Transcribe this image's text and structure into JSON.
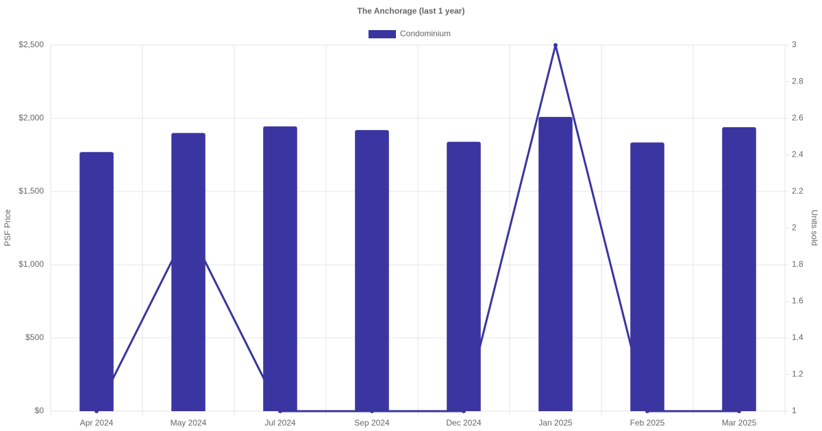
{
  "chart_data": {
    "type": "bar",
    "title": "The Anchorage (last 1 year)",
    "categories": [
      "Apr 2024",
      "May 2024",
      "Jul 2024",
      "Sep 2024",
      "Dec 2024",
      "Jan 2025",
      "Feb 2025",
      "Mar 2025"
    ],
    "series": [
      {
        "name": "Condominium",
        "type": "bar",
        "color": "#3a35a0",
        "values": [
          1770,
          1900,
          1945,
          1920,
          1840,
          2010,
          1835,
          1940
        ]
      },
      {
        "type": "line",
        "axis": "y2",
        "color": "#3a35a0",
        "values": [
          1,
          2,
          1,
          1,
          1,
          3,
          1,
          1
        ]
      }
    ],
    "y_label": "PSF Price",
    "y2_label": "Units sold",
    "ylim": [
      0,
      2500
    ],
    "yticks": [
      {
        "value": 0,
        "label": "$0"
      },
      {
        "value": 500,
        "label": "$500"
      },
      {
        "value": 1000,
        "label": "$1,000"
      },
      {
        "value": 1500,
        "label": "$1,500"
      },
      {
        "value": 2000,
        "label": "$2,000"
      },
      {
        "value": 2500,
        "label": "$2,500"
      }
    ],
    "y2lim": [
      1,
      3
    ],
    "y2ticks": [
      1,
      1.2,
      1.4,
      1.6,
      1.8,
      2,
      2.2,
      2.4,
      2.6,
      2.8,
      3
    ],
    "grid": true,
    "legend": "top"
  }
}
